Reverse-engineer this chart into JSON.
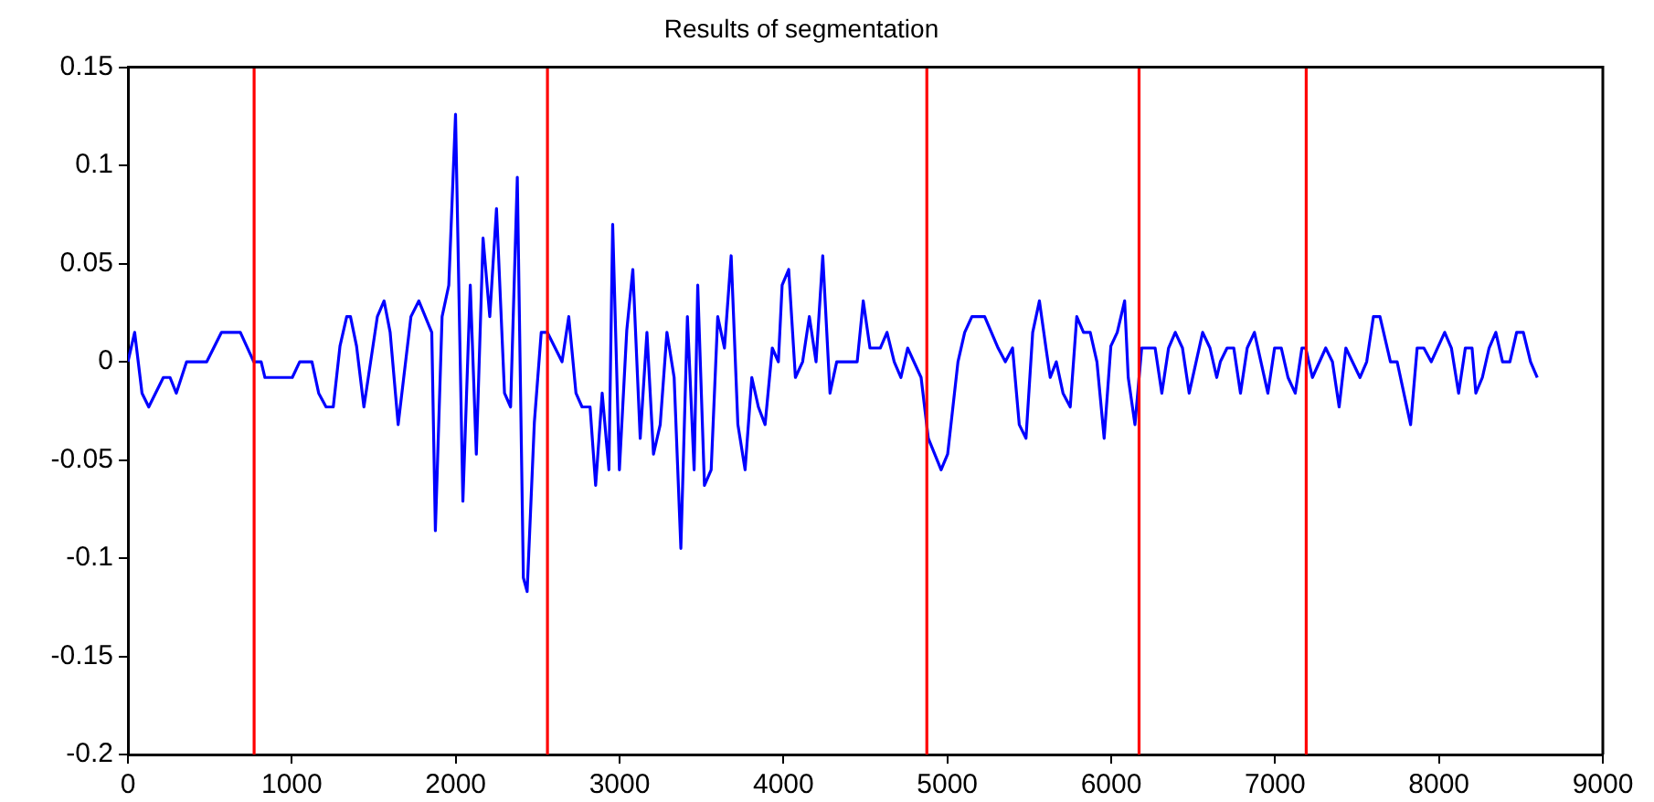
{
  "chart_data": {
    "type": "line",
    "title": "Results of segmentation",
    "x": [
      0,
      41,
      86,
      127,
      216,
      257,
      295,
      358,
      481,
      571,
      686,
      768,
      813,
      836,
      1003,
      1048,
      1123,
      1164,
      1209,
      1253,
      1294,
      1335,
      1358,
      1395,
      1440,
      1522,
      1563,
      1600,
      1649,
      1727,
      1775,
      1854,
      1876,
      1917,
      1958,
      1999,
      2044,
      2089,
      2126,
      2167,
      2208,
      2249,
      2298,
      2335,
      2376,
      2413,
      2436,
      2480,
      2522,
      2559,
      2649,
      2690,
      2734,
      2771,
      2820,
      2854,
      2894,
      2935,
      2958,
      2999,
      3044,
      3081,
      3126,
      3167,
      3207,
      3248,
      3289,
      3333,
      3374,
      3414,
      3455,
      3477,
      3518,
      3559,
      3599,
      3640,
      3681,
      3722,
      3766,
      3807,
      3847,
      3888,
      3932,
      3969,
      3992,
      4032,
      4073,
      4117,
      4158,
      4199,
      4240,
      4284,
      4325,
      4450,
      4487,
      4528,
      4591,
      4632,
      4676,
      4717,
      4758,
      4840,
      4884,
      4962,
      5002,
      5065,
      5106,
      5150,
      5228,
      5310,
      5354,
      5398,
      5439,
      5480,
      5521,
      5562,
      5602,
      5628,
      5665,
      5706,
      5750,
      5790,
      5831,
      5872,
      5913,
      5957,
      5998,
      6037,
      6082,
      6104,
      6145,
      6186,
      6268,
      6309,
      6350,
      6391,
      6435,
      6476,
      6558,
      6603,
      6644,
      6666,
      6707,
      6748,
      6789,
      6830,
      6874,
      6956,
      6997,
      7038,
      7079,
      7123,
      7164,
      7187,
      7228,
      7309,
      7350,
      7391,
      7432,
      7518,
      7559,
      7600,
      7640,
      7704,
      7745,
      7827,
      7867,
      7908,
      7953,
      8035,
      8076,
      8120,
      8161,
      8202,
      8225,
      8265,
      8306,
      8347,
      8388,
      8433,
      8474,
      8515,
      8559,
      8600
    ],
    "series": [
      {
        "color": "#0000ff",
        "values": [
          0,
          0.015,
          -0.016,
          -0.023,
          -0.008,
          -0.008,
          -0.016,
          0,
          0,
          0.015,
          0.015,
          0,
          0,
          -0.008,
          -0.008,
          0,
          0,
          -0.016,
          -0.023,
          -0.023,
          0.008,
          0.023,
          0.023,
          0.008,
          -0.023,
          0.023,
          0.031,
          0.015,
          -0.032,
          0.023,
          0.031,
          0.015,
          -0.086,
          0.023,
          0.039,
          0.126,
          -0.071,
          0.039,
          -0.047,
          0.063,
          0.023,
          0.078,
          -0.016,
          -0.023,
          0.094,
          -0.11,
          -0.117,
          -0.031,
          0.015,
          0.015,
          0,
          0.023,
          -0.016,
          -0.023,
          -0.023,
          -0.063,
          -0.016,
          -0.055,
          0.07,
          -0.055,
          0.016,
          0.047,
          -0.039,
          0.015,
          -0.047,
          -0.032,
          0.015,
          -0.008,
          -0.095,
          0.023,
          -0.055,
          0.039,
          -0.063,
          -0.055,
          0.023,
          0.007,
          0.054,
          -0.032,
          -0.055,
          -0.008,
          -0.023,
          -0.032,
          0.007,
          0,
          0.039,
          0.047,
          -0.008,
          0,
          0.023,
          0,
          0.054,
          -0.016,
          0,
          0,
          0.031,
          0.007,
          0.007,
          0.015,
          0,
          -0.008,
          0.007,
          -0.008,
          -0.039,
          -0.055,
          -0.047,
          0,
          0.015,
          0.023,
          0.023,
          0.007,
          0,
          0.007,
          -0.032,
          -0.039,
          0.015,
          0.031,
          0.007,
          -0.008,
          0,
          -0.016,
          -0.023,
          0.023,
          0.015,
          0.015,
          0,
          -0.039,
          0.008,
          0.015,
          0.031,
          -0.008,
          -0.032,
          0.007,
          0.007,
          -0.016,
          0.007,
          0.015,
          0.007,
          -0.016,
          0.015,
          0.007,
          -0.008,
          0,
          0.007,
          0.007,
          -0.016,
          0.007,
          0.015,
          -0.016,
          0.007,
          0.007,
          -0.008,
          -0.016,
          0.007,
          0.007,
          -0.008,
          0.007,
          0,
          -0.023,
          0.007,
          -0.008,
          0,
          0.023,
          0.023,
          0,
          0,
          -0.032,
          0.007,
          0.007,
          0,
          0.015,
          0.007,
          -0.016,
          0.007,
          0.007,
          -0.016,
          -0.008,
          0.007,
          0.015,
          0,
          0,
          0.015,
          0.015,
          0,
          -0.008
        ]
      }
    ],
    "xlim": [
      0,
      9000
    ],
    "xticks": [
      0,
      1000,
      2000,
      3000,
      4000,
      5000,
      6000,
      7000,
      8000,
      9000
    ],
    "ylim": [
      -0.2,
      0.15
    ],
    "yticks": [
      -0.2,
      -0.15,
      -0.1,
      -0.05,
      0,
      0.05,
      0.1,
      0.15
    ],
    "ref_lines": [
      {
        "axis": "x",
        "value": 770,
        "color": "#ff0000"
      },
      {
        "axis": "x",
        "value": 2560,
        "color": "#ff0000"
      },
      {
        "axis": "x",
        "value": 4875,
        "color": "#ff0000"
      },
      {
        "axis": "x",
        "value": 6170,
        "color": "#ff0000"
      },
      {
        "axis": "x",
        "value": 7190,
        "color": "#ff0000"
      }
    ],
    "grid": false,
    "legend": false,
    "marker": "none",
    "line_style": "solid"
  }
}
